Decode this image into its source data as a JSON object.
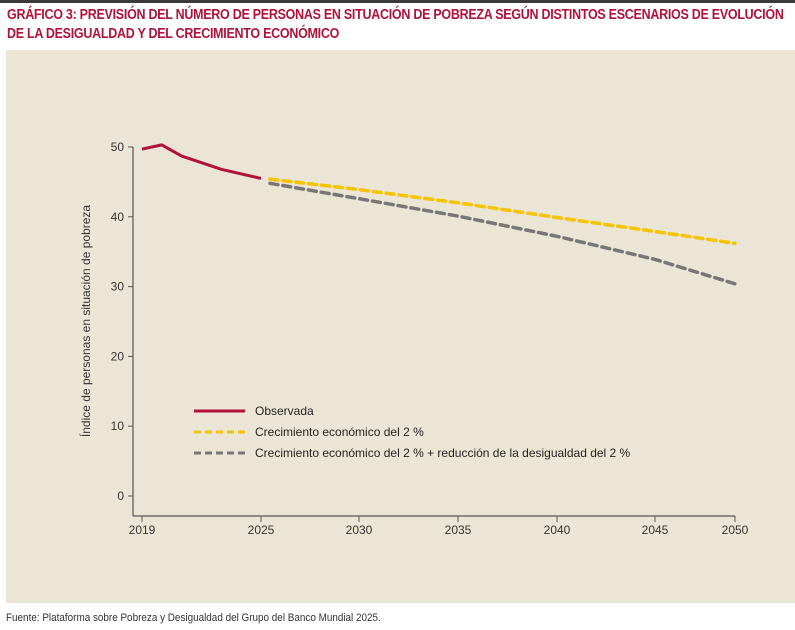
{
  "title": "GRÁFICO 3: PREVISIÓN DEL NÚMERO DE PERSONAS EN SITUACIÓN DE POBREZA SEGÚN DISTINTOS ESCENARIOS DE EVOLUCIÓN DE LA DESIGUALDAD Y DEL CRECIMIENTO ECONÓMICO",
  "source": "Fuente: Plataforma sobre Pobreza y Desigualdad del Grupo del Banco Mundial 2025.",
  "colors": {
    "title": "#b0123a",
    "panel": "#ebe5d5",
    "observada": "#b0123a",
    "crecimiento": "#f5c400",
    "crecimiento_desigualdad": "#767676",
    "axis": "#555555"
  },
  "chart_data": {
    "type": "line",
    "title": "GRÁFICO 3: PREVISIÓN DEL NÚMERO DE PERSONAS EN SITUACIÓN DE POBREZA SEGÚN DISTINTOS ESCENARIOS DE EVOLUCIÓN DE LA DESIGUALDAD Y DEL CRECIMIENTO ECONÓMICO",
    "xlabel": "",
    "ylabel": "Índice de personas en situación de pobreza",
    "x_ticks": [
      "2019",
      "2025",
      "2030",
      "2035",
      "2040",
      "2045",
      "2050"
    ],
    "y_ticks": [
      0,
      10,
      20,
      30,
      40,
      50
    ],
    "ylim": [
      0,
      50
    ],
    "grid": false,
    "legend_position": "lower-left inside",
    "series": [
      {
        "name": "Observada",
        "style": "solid",
        "x": [
          2019,
          2020,
          2021,
          2023,
          2025
        ],
        "values": [
          49.7,
          50.3,
          48.7,
          46.8,
          45.5
        ]
      },
      {
        "name": "Crecimiento económico del 2 %",
        "style": "dashed",
        "x": [
          2025,
          2030,
          2035,
          2040,
          2045,
          2050
        ],
        "values": [
          45.4,
          43.9,
          42.0,
          39.9,
          37.9,
          36.2
        ]
      },
      {
        "name": "Crecimiento económico del 2 % + reducción de la desigualdad del 2 %",
        "style": "dashed",
        "x": [
          2025,
          2030,
          2035,
          2040,
          2045,
          2050
        ],
        "values": [
          44.8,
          42.6,
          40.1,
          37.2,
          33.9,
          30.4
        ]
      }
    ]
  }
}
